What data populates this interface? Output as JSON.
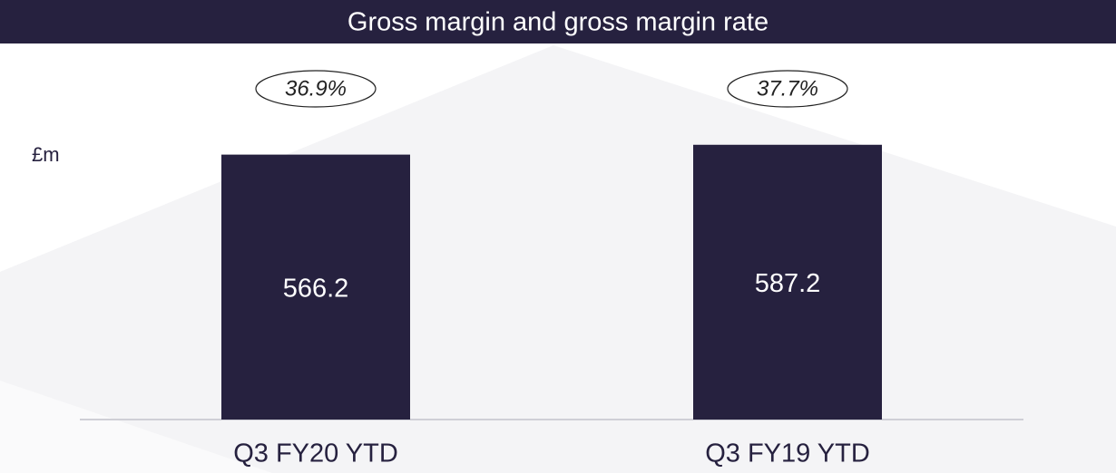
{
  "chart_data": {
    "type": "bar",
    "title": "Gross margin and gross margin rate",
    "unit_label": "£m",
    "categories": [
      "Q3 FY20 YTD",
      "Q3 FY19 YTD"
    ],
    "values": [
      566.2,
      587.2
    ],
    "color": "#26213f",
    "ylim": [
      0,
      610
    ],
    "rates": {
      "values": [
        36.9,
        37.7
      ],
      "value_labels": [
        "36.9%",
        "37.7%"
      ]
    }
  }
}
